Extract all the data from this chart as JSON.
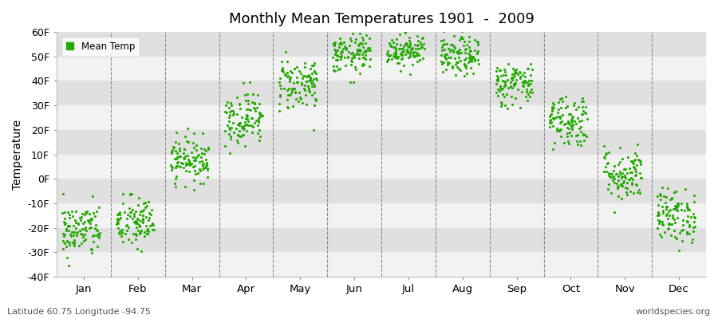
{
  "title": "Monthly Mean Temperatures 1901  -  2009",
  "ylabel": "Temperature",
  "xlabel_bottom_left": "Latitude 60.75 Longitude -94.75",
  "xlabel_bottom_right": "worldspecies.org",
  "legend_label": "Mean Temp",
  "dot_color": "#22aa00",
  "background_color": "#ffffff",
  "plot_bg_color": "#e8e8e8",
  "band_color_light": "#f2f2f2",
  "band_color_dark": "#e0e0e0",
  "ylim": [
    -40,
    60
  ],
  "yticks": [
    -40,
    -30,
    -20,
    -10,
    0,
    10,
    20,
    30,
    40,
    50,
    60
  ],
  "ytick_labels": [
    "-40F",
    "-30F",
    "-20F",
    "-10F",
    "0F",
    "10F",
    "20F",
    "30F",
    "40F",
    "50F",
    "60F"
  ],
  "months": [
    "Jan",
    "Feb",
    "Mar",
    "Apr",
    "May",
    "Jun",
    "Jul",
    "Aug",
    "Sep",
    "Oct",
    "Nov",
    "Dec"
  ],
  "month_means": [
    -21,
    -18,
    8,
    25,
    39,
    51,
    53,
    50,
    39,
    24,
    2,
    -15
  ],
  "month_stds": [
    5.5,
    5.5,
    4.5,
    5.5,
    5.5,
    4.0,
    3.5,
    4.0,
    4.5,
    5.5,
    5.5,
    5.5
  ],
  "n_points": 109,
  "marker_size": 5,
  "dpi": 100,
  "figsize": [
    9.0,
    4.0
  ]
}
